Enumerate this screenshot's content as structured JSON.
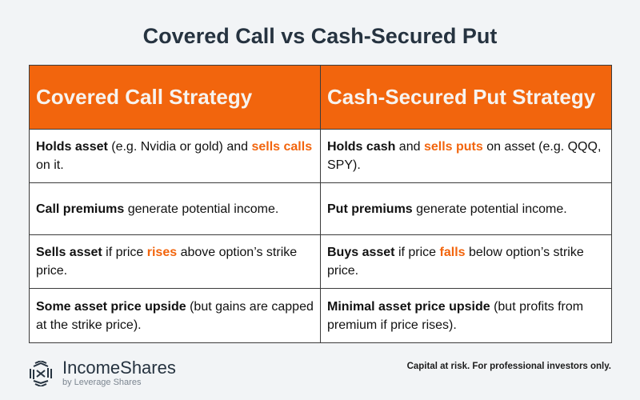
{
  "title": "Covered Call vs Cash-Secured Put",
  "table": {
    "headers": [
      "Covered Call Strategy",
      "Cash-Secured Put Strategy"
    ],
    "rows": [
      [
        [
          {
            "t": "Holds asset",
            "s": "b"
          },
          {
            "t": " (e.g. Nvidia or gold) and ",
            "s": ""
          },
          {
            "t": "sells calls",
            "s": "o"
          },
          {
            "t": " on it.",
            "s": ""
          }
        ],
        [
          {
            "t": "Holds cash",
            "s": "b"
          },
          {
            "t": " and ",
            "s": ""
          },
          {
            "t": "sells puts",
            "s": "o"
          },
          {
            "t": " on asset (e.g. QQQ, SPY).",
            "s": ""
          }
        ]
      ],
      [
        [
          {
            "t": "Call premiums",
            "s": "b"
          },
          {
            "t": " generate potential income.",
            "s": ""
          }
        ],
        [
          {
            "t": "Put premiums",
            "s": "b"
          },
          {
            "t": " generate potential income.",
            "s": ""
          }
        ]
      ],
      [
        [
          {
            "t": "Sells asset",
            "s": "b"
          },
          {
            "t": " if price ",
            "s": ""
          },
          {
            "t": "rises",
            "s": "o"
          },
          {
            "t": " above option’s strike price.",
            "s": ""
          }
        ],
        [
          {
            "t": "Buys asset",
            "s": "b"
          },
          {
            "t": " if price ",
            "s": ""
          },
          {
            "t": "falls",
            "s": "o"
          },
          {
            "t": " below option’s strike price.",
            "s": ""
          }
        ]
      ],
      [
        [
          {
            "t": "Some asset price upside",
            "s": "b"
          },
          {
            "t": " (but gains are capped at the strike price).",
            "s": ""
          }
        ],
        [
          {
            "t": "Minimal asset price upside",
            "s": "b"
          },
          {
            "t": " (but profits from premium if price rises).",
            "s": ""
          }
        ]
      ]
    ]
  },
  "footer": {
    "brand": "IncomeShares",
    "brand_sub": "by Leverage Shares",
    "logo_icon": "hexagon-weave-logo-icon",
    "disclaimer": "Capital at risk. For professional investors only."
  },
  "colors": {
    "accent": "#f2650d",
    "title": "#263340",
    "background": "#f2f4f6"
  }
}
